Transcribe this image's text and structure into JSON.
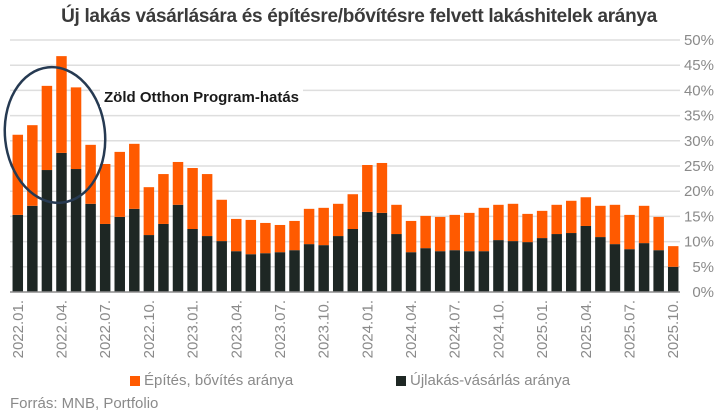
{
  "chart_data": {
    "type": "bar",
    "stacked": true,
    "title": "Új lakás vásárlására és építésre/bővítésre felvett lakáshitelek aránya",
    "xlabel": "",
    "ylabel": "",
    "ylim": [
      0,
      50
    ],
    "y_ticks": [
      "0%",
      "5%",
      "10%",
      "15%",
      "20%",
      "25%",
      "30%",
      "35%",
      "40%",
      "45%",
      "50%"
    ],
    "y_axis_side": "right",
    "grid": true,
    "categories": [
      "2022.01.",
      "2022.02.",
      "2022.03.",
      "2022.04.",
      "2022.05.",
      "2022.06.",
      "2022.07.",
      "2022.08.",
      "2022.09.",
      "2022.10.",
      "2022.11.",
      "2022.12.",
      "2023.01.",
      "2023.02.",
      "2023.03.",
      "2023.04.",
      "2023.05.",
      "2023.06.",
      "2023.07.",
      "2023.08.",
      "2023.09.",
      "2023.10.",
      "2023.11.",
      "2023.12.",
      "2024.01.",
      "2024.02.",
      "2024.03.",
      "2024.04.",
      "2024.05.",
      "2024.06.",
      "2024.07.",
      "2024.08.",
      "2024.09.",
      "2024.10.",
      "2024.11.",
      "2024.12.",
      "2025.01.",
      "2025.02.",
      "2025.03.",
      "2025.04.",
      "2025.05.",
      "2025.06.",
      "2025.07.",
      "2025.08.",
      "2025.09.",
      "2025.10."
    ],
    "x_tick_labels": [
      "2022.01.",
      "2022.04.",
      "2022.07.",
      "2022.10.",
      "2023.01.",
      "2023.04.",
      "2023.07.",
      "2023.10.",
      "2024.01.",
      "2024.04.",
      "2024.07.",
      "2024.10.",
      "2025.01.",
      "2025.04.",
      "2025.07.",
      "2025.10."
    ],
    "series": [
      {
        "name": "Újlakás-vásárlás aránya",
        "color": "#1e2724",
        "values": [
          15.3,
          17.1,
          24.2,
          27.6,
          24.4,
          17.5,
          13.5,
          14.9,
          16.5,
          11.3,
          13.5,
          17.3,
          12.5,
          11.1,
          10.1,
          8.1,
          7.5,
          7.7,
          7.9,
          8.3,
          9.5,
          9.3,
          11.1,
          12.5,
          15.9,
          15.7,
          11.5,
          7.9,
          8.7,
          8.1,
          8.3,
          8.1,
          8.1,
          10.3,
          10.1,
          9.9,
          10.7,
          11.5,
          11.7,
          13.1,
          10.9,
          9.5,
          8.5,
          9.7,
          8.3,
          5.0
        ]
      },
      {
        "name": "Építés, bővítés aránya",
        "color": "#ff5a00",
        "values": [
          15.9,
          16.0,
          16.7,
          19.2,
          16.2,
          11.7,
          11.9,
          12.9,
          12.9,
          9.5,
          9.9,
          8.5,
          12.1,
          12.3,
          8.2,
          6.4,
          6.8,
          6.0,
          5.4,
          5.8,
          7.0,
          7.4,
          6.4,
          6.9,
          9.3,
          9.9,
          5.8,
          6.2,
          6.4,
          6.8,
          7.0,
          7.6,
          8.6,
          7.0,
          7.4,
          5.6,
          5.4,
          5.8,
          6.4,
          5.7,
          6.2,
          7.8,
          6.8,
          7.4,
          6.6,
          4.1
        ]
      }
    ],
    "legend": {
      "placement": "bottom",
      "entries": [
        {
          "label": "Építés, bővítés aránya",
          "color": "#ff5a00"
        },
        {
          "label": "Újlakás-vásárlás aránya",
          "color": "#1e2724"
        }
      ]
    },
    "annotation": {
      "text": "Zöld Otthon Program-hatás",
      "highlight": "ellipse around 2022.01.–2022.05.",
      "color": "#263a52"
    },
    "source": "Forrás: MNB, Portfolio"
  }
}
